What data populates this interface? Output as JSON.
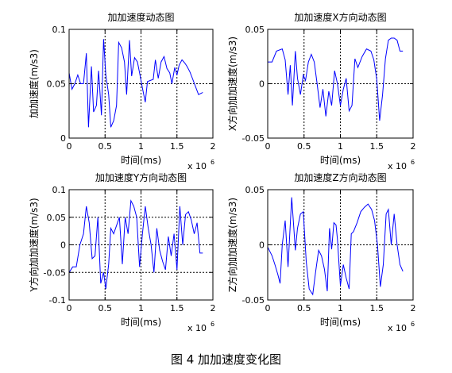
{
  "figure": {
    "caption": "图 4  加加速度变化图"
  },
  "chart_data": [
    {
      "type": "line",
      "title": "加加速度动态图",
      "xlabel": "时间(ms)",
      "ylabel": "加加速度(m/s3)",
      "x_multiplier": "x 10",
      "x_exponent": "6",
      "xlim": [
        0,
        2000000
      ],
      "ylim": [
        0,
        0.1
      ],
      "xticks": [
        0,
        500000,
        1000000,
        1500000,
        2000000
      ],
      "xtick_labels": [
        "0",
        "0.5",
        "1",
        "1.5",
        "2"
      ],
      "yticks": [
        0,
        0.05,
        0.1
      ],
      "ytick_labels": [
        "0",
        "0.05",
        "0.1"
      ],
      "grid": "dotted",
      "series": [
        {
          "color": "#0000ff",
          "x": [
            0,
            40000,
            80000,
            120000,
            160000,
            200000,
            240000,
            270000,
            310000,
            340000,
            380000,
            410000,
            450000,
            480000,
            510000,
            550000,
            580000,
            620000,
            660000,
            690000,
            730000,
            770000,
            800000,
            840000,
            870000,
            910000,
            950000,
            980000,
            1020000,
            1060000,
            1090000,
            1130000,
            1170000,
            1200000,
            1240000,
            1280000,
            1320000,
            1360000,
            1400000,
            1430000,
            1470000,
            1500000,
            1530000,
            1570000,
            1610000,
            1640000,
            1680000,
            1720000,
            1760000,
            1800000,
            1830000,
            1860000
          ],
          "y": [
            0.06,
            0.045,
            0.05,
            0.058,
            0.05,
            0.05,
            0.078,
            0.01,
            0.066,
            0.024,
            0.03,
            0.062,
            0.021,
            0.091,
            0.058,
            0.04,
            0.01,
            0.016,
            0.03,
            0.088,
            0.083,
            0.07,
            0.04,
            0.09,
            0.057,
            0.074,
            0.07,
            0.06,
            0.046,
            0.033,
            0.052,
            0.053,
            0.054,
            0.072,
            0.055,
            0.07,
            0.075,
            0.064,
            0.06,
            0.05,
            0.065,
            0.058,
            0.067,
            0.072,
            0.069,
            0.066,
            0.061,
            0.054,
            0.047,
            0.04,
            0.041,
            0.042
          ]
        }
      ]
    },
    {
      "type": "line",
      "title": "加加速度X方向动态图",
      "xlabel": "时间(ms)",
      "ylabel": "X方向加加速度(m/s3)",
      "x_multiplier": "x 10",
      "x_exponent": "6",
      "xlim": [
        0,
        2000000
      ],
      "ylim": [
        -0.05,
        0.05
      ],
      "xticks": [
        0,
        500000,
        1000000,
        1500000,
        2000000
      ],
      "xtick_labels": [
        "0",
        "0.5",
        "1",
        "1.5",
        "2"
      ],
      "yticks": [
        -0.05,
        0,
        0.05
      ],
      "ytick_labels": [
        "-0.05",
        "0",
        "0.05"
      ],
      "grid": "dotted",
      "series": [
        {
          "color": "#0000ff",
          "x": [
            0,
            60000,
            120000,
            200000,
            240000,
            280000,
            310000,
            340000,
            380000,
            410000,
            450000,
            490000,
            520000,
            560000,
            600000,
            640000,
            680000,
            720000,
            760000,
            800000,
            840000,
            880000,
            920000,
            960000,
            1000000,
            1040000,
            1080000,
            1120000,
            1160000,
            1200000,
            1240000,
            1300000,
            1360000,
            1420000,
            1460000,
            1500000,
            1540000,
            1580000,
            1620000,
            1660000,
            1700000,
            1740000,
            1780000,
            1820000,
            1860000
          ],
          "y": [
            0.02,
            0.02,
            0.03,
            0.032,
            0.022,
            -0.01,
            0.017,
            -0.02,
            0.03,
            0.005,
            -0.01,
            0.008,
            0.003,
            0.02,
            0.027,
            0.02,
            0,
            -0.022,
            -0.005,
            -0.03,
            -0.007,
            -0.02,
            0.012,
            0.0,
            -0.02,
            -0.005,
            0.005,
            -0.025,
            -0.02,
            0.023,
            0.015,
            0.025,
            0.032,
            0.03,
            0.022,
            0.004,
            -0.034,
            -0.01,
            0.023,
            0.04,
            0.042,
            0.042,
            0.04,
            0.03,
            0.03
          ]
        }
      ]
    },
    {
      "type": "line",
      "title": "加加速度Y方向动态图",
      "xlabel": "时间(ms)",
      "ylabel": "Y方向加加速度(m/s3)",
      "x_multiplier": "x 10",
      "x_exponent": "6",
      "xlim": [
        0,
        2000000
      ],
      "ylim": [
        -0.1,
        0.1
      ],
      "xticks": [
        0,
        500000,
        1000000,
        1500000,
        2000000
      ],
      "xtick_labels": [
        "0",
        "0.5",
        "1",
        "1.5",
        "2"
      ],
      "yticks": [
        -0.1,
        -0.05,
        0,
        0.05,
        0.1
      ],
      "ytick_labels": [
        "-0.1",
        "-0.05",
        "0",
        "0.05",
        "0.1"
      ],
      "grid": "dotted",
      "series": [
        {
          "color": "#0000ff",
          "x": [
            0,
            50000,
            100000,
            150000,
            200000,
            240000,
            280000,
            320000,
            360000,
            400000,
            440000,
            480000,
            510000,
            550000,
            580000,
            620000,
            660000,
            700000,
            740000,
            780000,
            820000,
            860000,
            900000,
            940000,
            980000,
            1020000,
            1060000,
            1100000,
            1140000,
            1180000,
            1220000,
            1260000,
            1300000,
            1340000,
            1380000,
            1420000,
            1460000,
            1500000,
            1540000,
            1580000,
            1620000,
            1660000,
            1700000,
            1740000,
            1780000,
            1820000,
            1860000
          ],
          "y": [
            -0.05,
            -0.04,
            -0.04,
            0.0,
            0.02,
            0.07,
            0.04,
            -0.025,
            -0.02,
            0.05,
            -0.07,
            -0.05,
            -0.08,
            -0.035,
            0.03,
            0.02,
            0.035,
            0.05,
            -0.035,
            0.05,
            0.02,
            0.08,
            0.07,
            0.05,
            -0.04,
            0.02,
            0.07,
            0.03,
            0.0,
            -0.05,
            0.03,
            -0.01,
            -0.03,
            -0.045,
            0.015,
            -0.02,
            0.02,
            -0.045,
            0.07,
            0.0,
            0.055,
            0.06,
            0.045,
            0.02,
            0.04,
            -0.015,
            -0.015
          ]
        }
      ]
    },
    {
      "type": "line",
      "title": "加加速度Z方向动态图",
      "xlabel": "时间(ms)",
      "ylabel": "Z方向加加速度(m/s3)",
      "x_multiplier": "x 10",
      "x_exponent": "6",
      "xlim": [
        0,
        2000000
      ],
      "ylim": [
        -0.05,
        0.05
      ],
      "xticks": [
        0,
        500000,
        1000000,
        1500000,
        2000000
      ],
      "xtick_labels": [
        "0",
        "0.5",
        "1",
        "1.5",
        "2"
      ],
      "yticks": [
        -0.05,
        0,
        0.05
      ],
      "ytick_labels": [
        "-0.05",
        "0",
        "0.05"
      ],
      "grid": "dotted",
      "series": [
        {
          "color": "#0000ff",
          "x": [
            0,
            60000,
            100000,
            140000,
            170000,
            200000,
            240000,
            280000,
            330000,
            380000,
            410000,
            450000,
            490000,
            530000,
            570000,
            620000,
            660000,
            700000,
            740000,
            780000,
            820000,
            850000,
            880000,
            910000,
            940000,
            960000,
            1000000,
            1040000,
            1080000,
            1120000,
            1150000,
            1180000,
            1230000,
            1280000,
            1330000,
            1380000,
            1430000,
            1470000,
            1510000,
            1550000,
            1590000,
            1630000,
            1660000,
            1700000,
            1740000,
            1780000,
            1820000,
            1860000
          ],
          "y": [
            -0.002,
            -0.01,
            -0.018,
            -0.027,
            -0.035,
            0.0,
            0.022,
            -0.02,
            0.043,
            -0.005,
            0.015,
            0.028,
            0.03,
            -0.015,
            -0.04,
            -0.045,
            -0.024,
            -0.005,
            -0.01,
            -0.022,
            -0.042,
            0.015,
            -0.004,
            0.02,
            0.018,
            0.005,
            -0.037,
            -0.018,
            -0.03,
            -0.04,
            0.01,
            0.012,
            0.02,
            0.03,
            0.034,
            0.037,
            0.032,
            0.022,
            0.0,
            -0.038,
            -0.018,
            0.028,
            0.032,
            0.0,
            0.028,
            0.0,
            -0.018,
            -0.024
          ]
        }
      ]
    }
  ]
}
